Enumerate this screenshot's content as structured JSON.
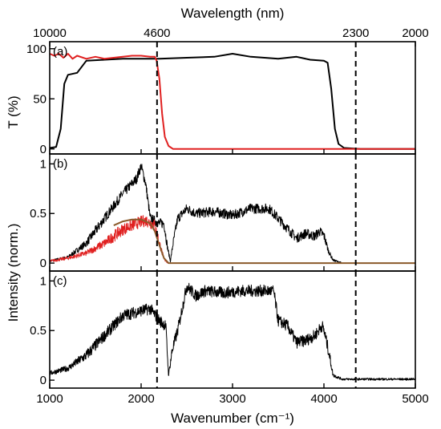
{
  "chart_data": {
    "type": "line",
    "top_axis": {
      "label": "Wavelength (nm)",
      "ticks": [
        {
          "label": "10000",
          "wavenumber": 1000
        },
        {
          "label": "4600",
          "wavenumber": 2174
        },
        {
          "label": "2300",
          "wavenumber": 4348
        },
        {
          "label": "2000",
          "wavenumber": 5000
        }
      ]
    },
    "x_axis": {
      "label": "Wavenumber (cm⁻¹)",
      "range": [
        1000,
        5000
      ],
      "ticks": [
        1000,
        2000,
        3000,
        4000,
        5000
      ]
    },
    "shared_ylabel": "Intensity (norm.)",
    "dashed_lines_wavenumber": [
      2174,
      4348
    ],
    "panels": [
      {
        "tag": "(a)",
        "ylabel": "T (%)",
        "ylim": [
          -5,
          107
        ],
        "yticks": [
          {
            "v": 0,
            "label": "0"
          },
          {
            "v": 50,
            "label": "50"
          },
          {
            "v": 100,
            "label": "100"
          }
        ],
        "series": [
          {
            "color": "#000000",
            "points": [
              [
                1000,
                1
              ],
              [
                1070,
                2
              ],
              [
                1120,
                20
              ],
              [
                1160,
                65
              ],
              [
                1200,
                74
              ],
              [
                1300,
                76
              ],
              [
                1400,
                88
              ],
              [
                1600,
                89
              ],
              [
                1800,
                90
              ],
              [
                2000,
                90
              ],
              [
                2200,
                90
              ],
              [
                2500,
                91
              ],
              [
                2800,
                92
              ],
              [
                3000,
                95
              ],
              [
                3200,
                92
              ],
              [
                3500,
                90
              ],
              [
                3700,
                92
              ],
              [
                3850,
                89
              ],
              [
                4000,
                88
              ],
              [
                4040,
                86
              ],
              [
                4080,
                60
              ],
              [
                4120,
                20
              ],
              [
                4160,
                5
              ],
              [
                4220,
                1
              ],
              [
                4400,
                0
              ],
              [
                5000,
                0
              ]
            ]
          },
          {
            "color": "#e02020",
            "points": [
              [
                1000,
                95
              ],
              [
                1050,
                93
              ],
              [
                1100,
                95
              ],
              [
                1150,
                91
              ],
              [
                1200,
                95
              ],
              [
                1250,
                90
              ],
              [
                1300,
                93
              ],
              [
                1400,
                90
              ],
              [
                1500,
                92
              ],
              [
                1600,
                90
              ],
              [
                1700,
                91
              ],
              [
                1800,
                92
              ],
              [
                1900,
                93
              ],
              [
                2000,
                93
              ],
              [
                2100,
                92
              ],
              [
                2150,
                92
              ],
              [
                2170,
                88
              ],
              [
                2200,
                70
              ],
              [
                2230,
                35
              ],
              [
                2260,
                12
              ],
              [
                2300,
                3
              ],
              [
                2350,
                0
              ],
              [
                5000,
                0
              ]
            ]
          }
        ]
      },
      {
        "tag": "(b)",
        "ylim": [
          -0.08,
          1.1
        ],
        "yticks": [
          {
            "v": 0,
            "label": "0"
          },
          {
            "v": 0.5,
            "label": "0.5"
          },
          {
            "v": 1,
            "label": "1"
          }
        ],
        "series": [
          {
            "color": "#000000",
            "noise": 0.05,
            "points": [
              [
                1000,
                0.02
              ],
              [
                1200,
                0.06
              ],
              [
                1400,
                0.2
              ],
              [
                1600,
                0.45
              ],
              [
                1800,
                0.7
              ],
              [
                1950,
                0.85
              ],
              [
                2000,
                0.98
              ],
              [
                2050,
                0.8
              ],
              [
                2100,
                0.45
              ],
              [
                2200,
                0.4
              ],
              [
                2250,
                0.4
              ],
              [
                2290,
                0.15
              ],
              [
                2320,
                0.02
              ],
              [
                2350,
                0.2
              ],
              [
                2400,
                0.45
              ],
              [
                2500,
                0.55
              ],
              [
                2600,
                0.5
              ],
              [
                2800,
                0.52
              ],
              [
                3000,
                0.48
              ],
              [
                3200,
                0.55
              ],
              [
                3400,
                0.55
              ],
              [
                3500,
                0.45
              ],
              [
                3600,
                0.35
              ],
              [
                3700,
                0.25
              ],
              [
                3800,
                0.3
              ],
              [
                3900,
                0.27
              ],
              [
                3950,
                0.32
              ],
              [
                4000,
                0.28
              ],
              [
                4050,
                0.12
              ],
              [
                4100,
                0.03
              ],
              [
                4200,
                0
              ],
              [
                5000,
                0
              ]
            ]
          },
          {
            "color": "#e02020",
            "noise": 0.06,
            "points": [
              [
                1000,
                0.02
              ],
              [
                1200,
                0.05
              ],
              [
                1400,
                0.1
              ],
              [
                1600,
                0.2
              ],
              [
                1800,
                0.34
              ],
              [
                1950,
                0.4
              ],
              [
                2050,
                0.43
              ],
              [
                2150,
                0.38
              ],
              [
                2200,
                0.2
              ],
              [
                2250,
                0.04
              ],
              [
                2300,
                0
              ],
              [
                5000,
                0
              ]
            ]
          },
          {
            "color": "#8b5a2b",
            "noise": 0,
            "points": [
              [
                1700,
                0.38
              ],
              [
                1800,
                0.42
              ],
              [
                1900,
                0.44
              ],
              [
                2000,
                0.44
              ],
              [
                2100,
                0.4
              ],
              [
                2150,
                0.32
              ],
              [
                2200,
                0.18
              ],
              [
                2250,
                0.05
              ],
              [
                2300,
                0
              ],
              [
                5000,
                0
              ]
            ]
          }
        ]
      },
      {
        "tag": "(c)",
        "ylim": [
          -0.08,
          1.1
        ],
        "yticks": [
          {
            "v": 0,
            "label": "0"
          },
          {
            "v": 0.5,
            "label": "0.5"
          },
          {
            "v": 1,
            "label": "1"
          }
        ],
        "series": [
          {
            "color": "#000000",
            "noise": 0.06,
            "points": [
              [
                1000,
                0.07
              ],
              [
                1200,
                0.12
              ],
              [
                1400,
                0.25
              ],
              [
                1600,
                0.45
              ],
              [
                1800,
                0.65
              ],
              [
                2000,
                0.7
              ],
              [
                2100,
                0.72
              ],
              [
                2200,
                0.6
              ],
              [
                2270,
                0.55
              ],
              [
                2300,
                0.05
              ],
              [
                2340,
                0.3
              ],
              [
                2400,
                0.5
              ],
              [
                2500,
                0.95
              ],
              [
                2600,
                0.85
              ],
              [
                2700,
                0.9
              ],
              [
                2900,
                0.88
              ],
              [
                3100,
                0.9
              ],
              [
                3300,
                0.9
              ],
              [
                3450,
                0.9
              ],
              [
                3500,
                0.6
              ],
              [
                3600,
                0.55
              ],
              [
                3700,
                0.38
              ],
              [
                3800,
                0.4
              ],
              [
                3900,
                0.45
              ],
              [
                3980,
                0.55
              ],
              [
                4000,
                0.5
              ],
              [
                4050,
                0.3
              ],
              [
                4100,
                0.05
              ],
              [
                4200,
                0.01
              ],
              [
                5000,
                0.01
              ]
            ]
          }
        ]
      }
    ]
  }
}
